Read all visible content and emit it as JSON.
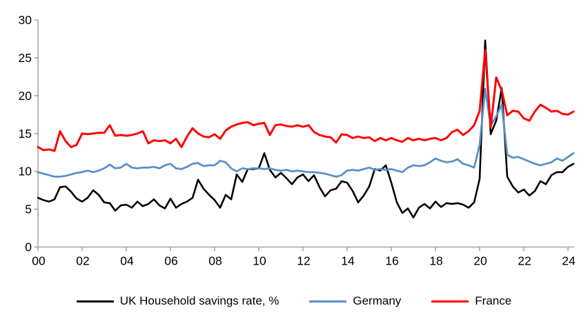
{
  "chart_data": {
    "type": "line",
    "title": "",
    "xlabel": "",
    "ylabel": "",
    "grid": false,
    "legend_position": "bottom-center",
    "ylim": [
      0,
      30
    ],
    "y_ticks": [
      0,
      5,
      10,
      15,
      20,
      25,
      30
    ],
    "y_tick_labels": [
      "0",
      "5",
      "10",
      "15",
      "20",
      "25",
      "30"
    ],
    "x_tick_labels": [
      "00",
      "02",
      "04",
      "06",
      "08",
      "10",
      "12",
      "14",
      "16",
      "18",
      "20",
      "22",
      "24"
    ],
    "x_tick_years": [
      2000,
      2002,
      2004,
      2006,
      2008,
      2010,
      2012,
      2014,
      2016,
      2018,
      2020,
      2022,
      2024
    ],
    "x_start_year": 2000,
    "x_step_years": 0.25,
    "x_note": "quarterly data, 2000Q1 to 2024Q2",
    "series": [
      {
        "name": "UK Household savings rate, %",
        "color": "#000000",
        "values": [
          6.5,
          6.2,
          6.0,
          6.3,
          7.9,
          8.0,
          7.3,
          6.4,
          6.0,
          6.5,
          7.5,
          6.9,
          5.9,
          5.8,
          4.8,
          5.5,
          5.6,
          5.2,
          6.0,
          5.4,
          5.7,
          6.3,
          5.5,
          5.1,
          6.4,
          5.2,
          5.7,
          6.0,
          6.5,
          8.9,
          7.7,
          6.9,
          6.2,
          5.2,
          6.9,
          6.3,
          9.6,
          8.6,
          10.3,
          10.3,
          10.4,
          12.4,
          10.2,
          9.2,
          9.8,
          9.1,
          8.3,
          9.2,
          9.6,
          8.7,
          9.5,
          7.9,
          6.7,
          7.5,
          7.7,
          8.7,
          8.5,
          7.4,
          5.9,
          6.8,
          8.0,
          10.3,
          10.1,
          10.8,
          8.5,
          5.9,
          4.5,
          5.1,
          3.9,
          5.2,
          5.7,
          5.1,
          6.0,
          5.3,
          5.8,
          5.7,
          5.8,
          5.6,
          5.2,
          5.9,
          9.0,
          27.3,
          14.9,
          16.7,
          21.0,
          9.3,
          8.0,
          7.2,
          7.6,
          6.8,
          7.4,
          8.7,
          8.3,
          9.5,
          9.9,
          9.9,
          10.6,
          11.0
        ]
      },
      {
        "name": "Germany",
        "color": "#5B8FC9",
        "values": [
          9.9,
          9.7,
          9.5,
          9.3,
          9.3,
          9.4,
          9.6,
          9.8,
          9.9,
          10.1,
          9.9,
          10.1,
          10.4,
          10.9,
          10.4,
          10.5,
          11.0,
          10.5,
          10.4,
          10.5,
          10.5,
          10.6,
          10.4,
          10.8,
          11.0,
          10.4,
          10.3,
          10.6,
          11.0,
          11.1,
          10.7,
          10.8,
          10.8,
          11.4,
          11.2,
          10.4,
          10.0,
          10.4,
          10.3,
          10.4,
          10.4,
          10.3,
          10.4,
          10.2,
          10.1,
          10.2,
          10.0,
          10.1,
          10.0,
          9.9,
          9.9,
          9.8,
          9.7,
          9.5,
          9.3,
          9.5,
          10.1,
          10.2,
          10.1,
          10.3,
          10.5,
          10.2,
          10.3,
          10.2,
          10.3,
          10.1,
          9.9,
          10.5,
          10.8,
          10.7,
          10.8,
          11.2,
          11.7,
          11.4,
          11.2,
          11.3,
          11.6,
          11.0,
          10.8,
          10.5,
          13.5,
          20.9,
          16.0,
          17.3,
          18.8,
          12.2,
          11.8,
          11.9,
          11.6,
          11.3,
          11.0,
          10.8,
          11.0,
          11.2,
          11.7,
          11.4,
          11.9,
          12.4
        ]
      },
      {
        "name": "France",
        "color": "#FF0000",
        "values": [
          13.2,
          12.8,
          12.9,
          12.7,
          15.3,
          14.0,
          13.2,
          13.5,
          15.0,
          14.9,
          15.0,
          15.1,
          15.1,
          16.1,
          14.7,
          14.8,
          14.7,
          14.8,
          15.0,
          15.3,
          13.7,
          14.1,
          14.0,
          14.1,
          13.7,
          14.3,
          13.2,
          14.6,
          15.7,
          15.0,
          14.6,
          14.5,
          14.9,
          14.3,
          15.4,
          15.9,
          16.2,
          16.4,
          16.5,
          16.1,
          16.3,
          16.4,
          14.8,
          16.1,
          16.2,
          16.0,
          15.9,
          16.1,
          15.9,
          16.1,
          15.2,
          14.8,
          14.6,
          14.5,
          13.8,
          14.9,
          14.8,
          14.4,
          14.6,
          14.4,
          14.5,
          14.0,
          14.4,
          14.1,
          14.4,
          14.1,
          13.9,
          14.4,
          14.1,
          14.3,
          14.1,
          14.3,
          14.4,
          14.1,
          14.4,
          15.2,
          15.5,
          14.8,
          15.3,
          16.1,
          18.0,
          26.0,
          15.8,
          22.4,
          20.7,
          17.4,
          18.0,
          17.9,
          17.0,
          16.7,
          17.9,
          18.8,
          18.4,
          17.9,
          18.0,
          17.6,
          17.5,
          17.9
        ]
      }
    ]
  },
  "colors": {
    "axis": "#A6A6A6",
    "text": "#000000",
    "background": "#FFFFFF"
  }
}
